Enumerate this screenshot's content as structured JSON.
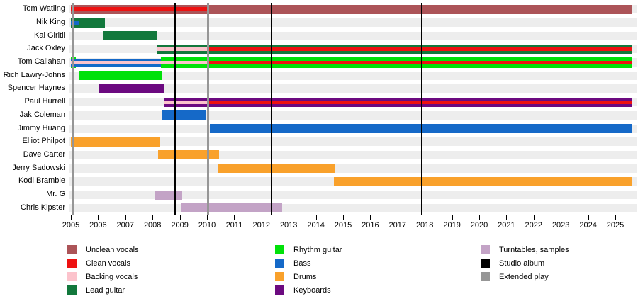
{
  "chart_data": {
    "type": "timeline",
    "description": "Band members timeline (Gantt-style) showing each member's instrument/role tenure and release dates",
    "axis": {
      "start": 2005,
      "end": 2025,
      "tick_step": 1,
      "plot_end": 2025.75
    },
    "grid": "horizontal row bands, alternating light gray",
    "legend_position": "bottom, three columns",
    "role_colors": {
      "unclean": "#ac5458",
      "clean": "#ee1111",
      "backing": "#fcc3cc",
      "lead": "#12783c",
      "rhythm": "#00e109",
      "bass": "#1569c8",
      "drums": "#f9a12b",
      "keys": "#6c0a80",
      "turntables": "#c3a3c6"
    },
    "members": [
      {
        "name": "Tom Watling",
        "bars": [
          {
            "c": "unclean",
            "s": 2005.0,
            "e": 2025.62,
            "h": 13
          },
          {
            "c": "clean",
            "s": 2005.0,
            "e": 2010.05,
            "h": 6
          }
        ]
      },
      {
        "name": "Nik King",
        "bars": [
          {
            "c": "lead",
            "s": 2005.0,
            "e": 2006.25,
            "h": 13
          },
          {
            "c": "bass",
            "s": 2005.0,
            "e": 2005.3,
            "h": 6
          }
        ]
      },
      {
        "name": "Kai Giritli",
        "bars": [
          {
            "c": "lead",
            "s": 2006.2,
            "e": 2008.15,
            "h": 13
          }
        ]
      },
      {
        "name": "Jack Oxley",
        "bars": [
          {
            "c": "lead",
            "s": 2008.15,
            "e": 2025.62,
            "h": 13
          },
          {
            "c": "backing",
            "s": 2008.15,
            "e": 2010.05,
            "h": 5
          },
          {
            "c": "clean",
            "s": 2010.05,
            "e": 2025.62,
            "h": 5
          }
        ]
      },
      {
        "name": "Tom Callahan",
        "bars": [
          {
            "c": "rhythm",
            "s": 2005.0,
            "e": 2005.17,
            "h": 15
          },
          {
            "c": "rhythm",
            "s": 2008.3,
            "e": 2025.62,
            "h": 15
          },
          {
            "c": "bass",
            "s": 2005.0,
            "e": 2008.3,
            "h": 11
          },
          {
            "c": "backing",
            "s": 2005.0,
            "e": 2010.05,
            "h": 4
          },
          {
            "c": "clean",
            "s": 2010.05,
            "e": 2025.62,
            "h": 5
          }
        ]
      },
      {
        "name": "Rich Lawry-Johns",
        "bars": [
          {
            "c": "rhythm",
            "s": 2005.28,
            "e": 2008.33,
            "h": 13
          }
        ]
      },
      {
        "name": "Spencer Haynes",
        "bars": [
          {
            "c": "keys",
            "s": 2006.05,
            "e": 2008.42,
            "h": 13
          }
        ]
      },
      {
        "name": "Paul Hurrell",
        "bars": [
          {
            "c": "keys",
            "s": 2008.42,
            "e": 2025.62,
            "h": 13
          },
          {
            "c": "backing",
            "s": 2008.42,
            "e": 2010.05,
            "h": 5
          },
          {
            "c": "clean",
            "s": 2010.05,
            "e": 2025.62,
            "h": 5
          }
        ]
      },
      {
        "name": "Jak Coleman",
        "bars": [
          {
            "c": "bass",
            "s": 2008.33,
            "e": 2009.95,
            "h": 13
          }
        ]
      },
      {
        "name": "Jimmy Huang",
        "bars": [
          {
            "c": "bass",
            "s": 2010.1,
            "e": 2025.62,
            "h": 13
          }
        ]
      },
      {
        "name": "Elliot Philpot",
        "bars": [
          {
            "c": "drums",
            "s": 2005.0,
            "e": 2008.27,
            "h": 13
          }
        ]
      },
      {
        "name": "Dave Carter",
        "bars": [
          {
            "c": "drums",
            "s": 2008.2,
            "e": 2010.45,
            "h": 13
          }
        ]
      },
      {
        "name": "Jerry Sadowski",
        "bars": [
          {
            "c": "drums",
            "s": 2010.4,
            "e": 2014.72,
            "h": 13
          }
        ]
      },
      {
        "name": "Kodi Bramble",
        "bars": [
          {
            "c": "drums",
            "s": 2014.67,
            "e": 2025.62,
            "h": 13
          }
        ]
      },
      {
        "name": "Mr. G",
        "bars": [
          {
            "c": "turntables",
            "s": 2008.08,
            "e": 2009.1,
            "h": 13
          }
        ]
      },
      {
        "name": "Chris Kipster",
        "bars": [
          {
            "c": "turntables",
            "s": 2009.05,
            "e": 2012.75,
            "h": 13
          }
        ]
      }
    ],
    "releases": [
      {
        "type": "Extended play",
        "year": 2005.06
      },
      {
        "type": "Studio album",
        "year": 2008.83
      },
      {
        "type": "Extended play",
        "year": 2010.05
      },
      {
        "type": "Studio album",
        "year": 2012.36
      },
      {
        "type": "Studio album",
        "year": 2017.89
      }
    ],
    "tick_labels": [
      "2005",
      "2006",
      "2007",
      "2008",
      "2009",
      "2010",
      "2011",
      "2012",
      "2013",
      "2014",
      "2015",
      "2016",
      "2017",
      "2018",
      "2019",
      "2020",
      "2021",
      "2022",
      "2023",
      "2024",
      "2025"
    ]
  },
  "legend": {
    "columns": [
      [
        {
          "label": "Unclean vocals",
          "color": "#ac5458"
        },
        {
          "label": "Clean vocals",
          "color": "#ee1111"
        },
        {
          "label": "Backing vocals",
          "color": "#fcc3cc"
        },
        {
          "label": "Lead guitar",
          "color": "#12783c"
        }
      ],
      [
        {
          "label": "Rhythm guitar",
          "color": "#00e109"
        },
        {
          "label": "Bass",
          "color": "#1569c8"
        },
        {
          "label": "Drums",
          "color": "#f9a12b"
        },
        {
          "label": "Keyboards",
          "color": "#6c0a80"
        }
      ],
      [
        {
          "label": "Turntables, samples",
          "color": "#c3a3c6"
        },
        {
          "label": "Studio album",
          "color": "#000000"
        },
        {
          "label": "Extended play",
          "color": "#969696"
        }
      ]
    ]
  },
  "release_line_colors": {
    "Studio album": "#000000",
    "Extended play": "#969696"
  }
}
